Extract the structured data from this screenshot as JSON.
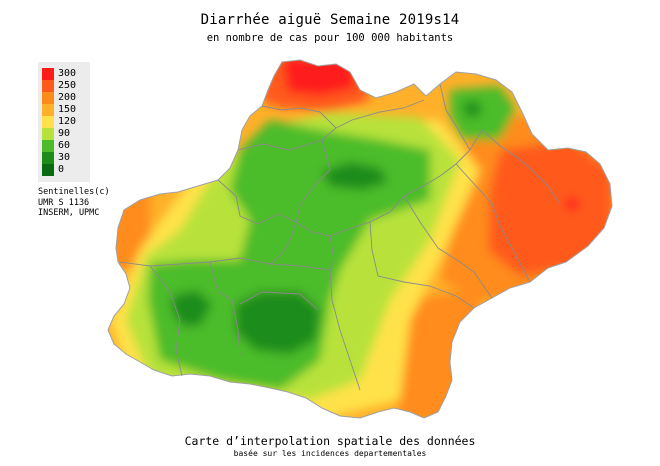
{
  "title": "Diarrhée aiguë Semaine 2019s14",
  "subtitle": "en nombre de cas pour 100 000 habitants",
  "legend": {
    "items": [
      {
        "label": "300",
        "color": "#ff1a1a"
      },
      {
        "label": "250",
        "color": "#ff5a1a"
      },
      {
        "label": "200",
        "color": "#ff8c1a"
      },
      {
        "label": "150",
        "color": "#ffb02a"
      },
      {
        "label": "120",
        "color": "#ffe24a"
      },
      {
        "label": "90",
        "color": "#b8e23a"
      },
      {
        "label": "60",
        "color": "#4cbc2a"
      },
      {
        "label": "30",
        "color": "#1e8c1a"
      },
      {
        "label": "0",
        "color": "#0a6a10"
      }
    ]
  },
  "credits": [
    "Sentinelles(c)",
    "UMR S 1136",
    "INSERM, UPMC"
  ],
  "footer": {
    "main": "Carte d’interpolation spatiale des données",
    "sub": "basée sur les incidences departementales"
  }
}
